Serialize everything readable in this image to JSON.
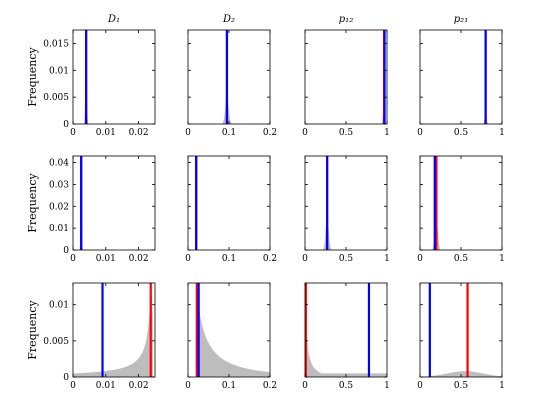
{
  "chart_data": {
    "type": "histogram-grid",
    "rows": 3,
    "cols": 4,
    "column_titles": [
      "D₁",
      "D₂",
      "p₁₂",
      "p₂₁"
    ],
    "ylabel": "Frequency",
    "colors": {
      "true": "#0000ff",
      "estimate": "#ff0000",
      "hist": "#bdbdbd"
    },
    "columns_x": [
      {
        "xlim": [
          0,
          0.025
        ],
        "ticks": [
          0,
          0.01,
          0.02
        ],
        "tick_labels": [
          "0",
          "0.01",
          "0.02"
        ]
      },
      {
        "xlim": [
          0,
          0.2
        ],
        "ticks": [
          0,
          0.1,
          0.2
        ],
        "tick_labels": [
          "0",
          "0.1",
          "0.2"
        ]
      },
      {
        "xlim": [
          0,
          1
        ],
        "ticks": [
          0,
          0.5,
          1
        ],
        "tick_labels": [
          "0",
          "0.5",
          "1"
        ]
      },
      {
        "xlim": [
          0,
          1
        ],
        "ticks": [
          0,
          0.5,
          1
        ],
        "tick_labels": [
          "0",
          "0.5",
          "1"
        ]
      }
    ],
    "rows_y": [
      {
        "ylim": [
          0,
          0.0175
        ],
        "ticks": [
          0,
          0.005,
          0.01,
          0.015
        ],
        "tick_labels": [
          "0",
          "0.005",
          "0.01",
          "0.015"
        ]
      },
      {
        "ylim": [
          0,
          0.043
        ],
        "ticks": [
          0,
          0.01,
          0.02,
          0.03,
          0.04
        ],
        "tick_labels": [
          "0",
          "0.01",
          "0.02",
          "0.03",
          "0.04"
        ]
      },
      {
        "ylim": [
          0,
          0.013
        ],
        "ticks": [
          0,
          0.005,
          0.01
        ],
        "tick_labels": [
          "0",
          "0.005",
          "0.01"
        ]
      }
    ],
    "panels": [
      {
        "row": 0,
        "col": 0,
        "blue": 0.004,
        "red": 0.004,
        "dist": {
          "kind": "spike",
          "center": 0.004,
          "width": 0.0002,
          "height": 0.02
        }
      },
      {
        "row": 0,
        "col": 1,
        "blue": 0.095,
        "red": 0.095,
        "dist": {
          "kind": "spike",
          "center": 0.095,
          "width": 0.004,
          "height": 0.0055
        }
      },
      {
        "row": 0,
        "col": 2,
        "blue": 0.97,
        "red": 0.965,
        "dist": {
          "kind": "spike",
          "center": 0.96,
          "width": 0.01,
          "height": 0.004
        }
      },
      {
        "row": 0,
        "col": 3,
        "blue": 0.8,
        "red": 0.8,
        "dist": {
          "kind": "spike",
          "center": 0.8,
          "width": 0.01,
          "height": 0.0035
        }
      },
      {
        "row": 1,
        "col": 0,
        "blue": 0.0025,
        "red": 0.0025,
        "dist": {
          "kind": "spike",
          "center": 0.0025,
          "width": 0.00015,
          "height": 0.05
        }
      },
      {
        "row": 1,
        "col": 1,
        "blue": 0.02,
        "red": 0.02,
        "dist": {
          "kind": "spike",
          "center": 0.02,
          "width": 0.0008,
          "height": 0.05
        }
      },
      {
        "row": 1,
        "col": 2,
        "blue": 0.27,
        "red": 0.27,
        "dist": {
          "kind": "spike",
          "center": 0.27,
          "width": 0.018,
          "height": 0.016
        }
      },
      {
        "row": 1,
        "col": 3,
        "blue": 0.18,
        "red": 0.2,
        "dist": {
          "kind": "spike",
          "center": 0.2,
          "width": 0.018,
          "height": 0.014
        }
      },
      {
        "row": 2,
        "col": 0,
        "blue": 0.009,
        "red": 0.0237,
        "dist": {
          "kind": "rising",
          "peak": 0.0238,
          "scale": 0.0009,
          "height": 0.0135
        }
      },
      {
        "row": 2,
        "col": 1,
        "blue": 0.026,
        "red": 0.022,
        "dist": {
          "kind": "decay",
          "start": 0.018,
          "scale": 0.02,
          "height": 0.014
        }
      },
      {
        "row": 2,
        "col": 2,
        "blue": 0.78,
        "red": 0.01,
        "dist": {
          "kind": "decay",
          "start": 0.0,
          "scale": 0.02,
          "height": 0.013,
          "floor": 0.0005
        }
      },
      {
        "row": 2,
        "col": 3,
        "blue": 0.12,
        "red": 0.58,
        "dist": {
          "kind": "hump",
          "center": 0.55,
          "width": 0.22,
          "height": 0.0008
        }
      }
    ]
  }
}
